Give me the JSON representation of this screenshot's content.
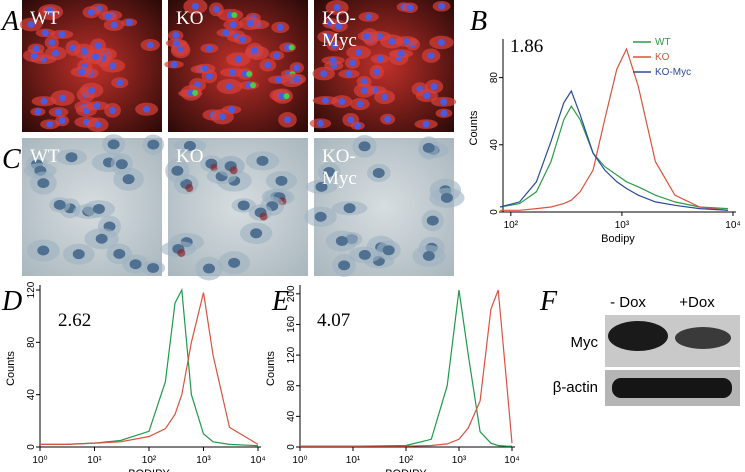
{
  "panels": {
    "A": {
      "label": "A",
      "images": [
        [
          "WT"
        ],
        [
          "KO"
        ],
        [
          "KO-",
          "Myc"
        ]
      ]
    },
    "C": {
      "label": "C",
      "images": [
        [
          "WT"
        ],
        [
          "KO"
        ],
        [
          "KO-",
          "Myc"
        ]
      ]
    },
    "F": {
      "label": "F",
      "columns": [
        "- Dox",
        "+Dox"
      ],
      "rows": [
        "Myc",
        "β-actin"
      ]
    }
  },
  "chart_data": [
    {
      "type": "line",
      "panel": "B",
      "annotation": "1.86",
      "xlabel": "Bodipy",
      "ylabel": "Counts",
      "xscale": "log",
      "legend": "upper right",
      "x": [
        80,
        120,
        170,
        230,
        300,
        350,
        420,
        550,
        700,
        900,
        1100,
        1400,
        2000,
        3000,
        5000,
        9000
      ],
      "series": [
        {
          "name": "WT",
          "color": "#2e9a4a",
          "values": [
            3,
            5,
            12,
            30,
            55,
            63,
            55,
            35,
            27,
            22,
            18,
            15,
            10,
            6,
            3,
            2
          ]
        },
        {
          "name": "KO",
          "color": "#d9533f",
          "values": [
            1,
            1,
            2,
            3,
            5,
            7,
            12,
            25,
            55,
            85,
            97,
            75,
            30,
            10,
            3,
            1
          ]
        },
        {
          "name": "KO-Myc",
          "color": "#2a4a9a",
          "values": [
            3,
            6,
            18,
            42,
            65,
            72,
            58,
            35,
            25,
            18,
            14,
            10,
            6,
            4,
            2,
            1
          ]
        }
      ],
      "xlim": [
        85,
        10000
      ],
      "ylim": [
        0,
        100
      ],
      "xticks": [
        {
          "value": 100,
          "label": "10²"
        },
        {
          "value": 1000,
          "label": "10³"
        },
        {
          "value": 10000,
          "label": "10⁴"
        }
      ],
      "yticks": [
        0,
        40,
        80
      ]
    },
    {
      "type": "line",
      "panel": "D",
      "annotation": "2.62",
      "xlabel": "BODIPY",
      "ylabel": "Counts",
      "xscale": "log",
      "x": [
        1,
        3,
        10,
        30,
        100,
        200,
        300,
        400,
        600,
        1000,
        1500,
        3000,
        10000
      ],
      "series": [
        {
          "color": "#1f9a4a",
          "values": [
            2,
            2,
            3,
            5,
            12,
            50,
            110,
            120,
            40,
            10,
            4,
            2,
            1
          ]
        },
        {
          "color": "#d9533f",
          "values": [
            2,
            2,
            3,
            4,
            8,
            14,
            25,
            40,
            80,
            118,
            70,
            15,
            2
          ]
        }
      ],
      "xlim": [
        1,
        10000
      ],
      "ylim": [
        0,
        120
      ],
      "xticks": [
        {
          "value": 1,
          "label": "10⁰"
        },
        {
          "value": 10,
          "label": "10¹"
        },
        {
          "value": 100,
          "label": "10²"
        },
        {
          "value": 1000,
          "label": "10³"
        },
        {
          "value": 10000,
          "label": "10⁴"
        }
      ],
      "yticks": [
        0,
        40,
        80,
        120
      ]
    },
    {
      "type": "line",
      "panel": "E",
      "annotation": "4.07",
      "xlabel": "BODIPY",
      "ylabel": "Counts",
      "xscale": "log",
      "x": [
        1,
        10,
        100,
        300,
        600,
        1000,
        1500,
        2500,
        4000,
        5500,
        8000,
        10000
      ],
      "series": [
        {
          "color": "#1f9a4a",
          "values": [
            1,
            1,
            2,
            10,
            80,
            205,
            120,
            20,
            5,
            2,
            1,
            1
          ]
        },
        {
          "color": "#d9533f",
          "values": [
            1,
            1,
            1,
            2,
            4,
            10,
            25,
            60,
            180,
            205,
            80,
            5
          ]
        }
      ],
      "xlim": [
        1,
        10000
      ],
      "ylim": [
        0,
        205
      ],
      "xticks": [
        {
          "value": 1,
          "label": "10⁰"
        },
        {
          "value": 10,
          "label": "10¹"
        },
        {
          "value": 100,
          "label": "10²"
        },
        {
          "value": 1000,
          "label": "10³"
        },
        {
          "value": 10000,
          "label": "10⁴"
        }
      ],
      "yticks": [
        0,
        40,
        80,
        120,
        160,
        200
      ]
    }
  ]
}
